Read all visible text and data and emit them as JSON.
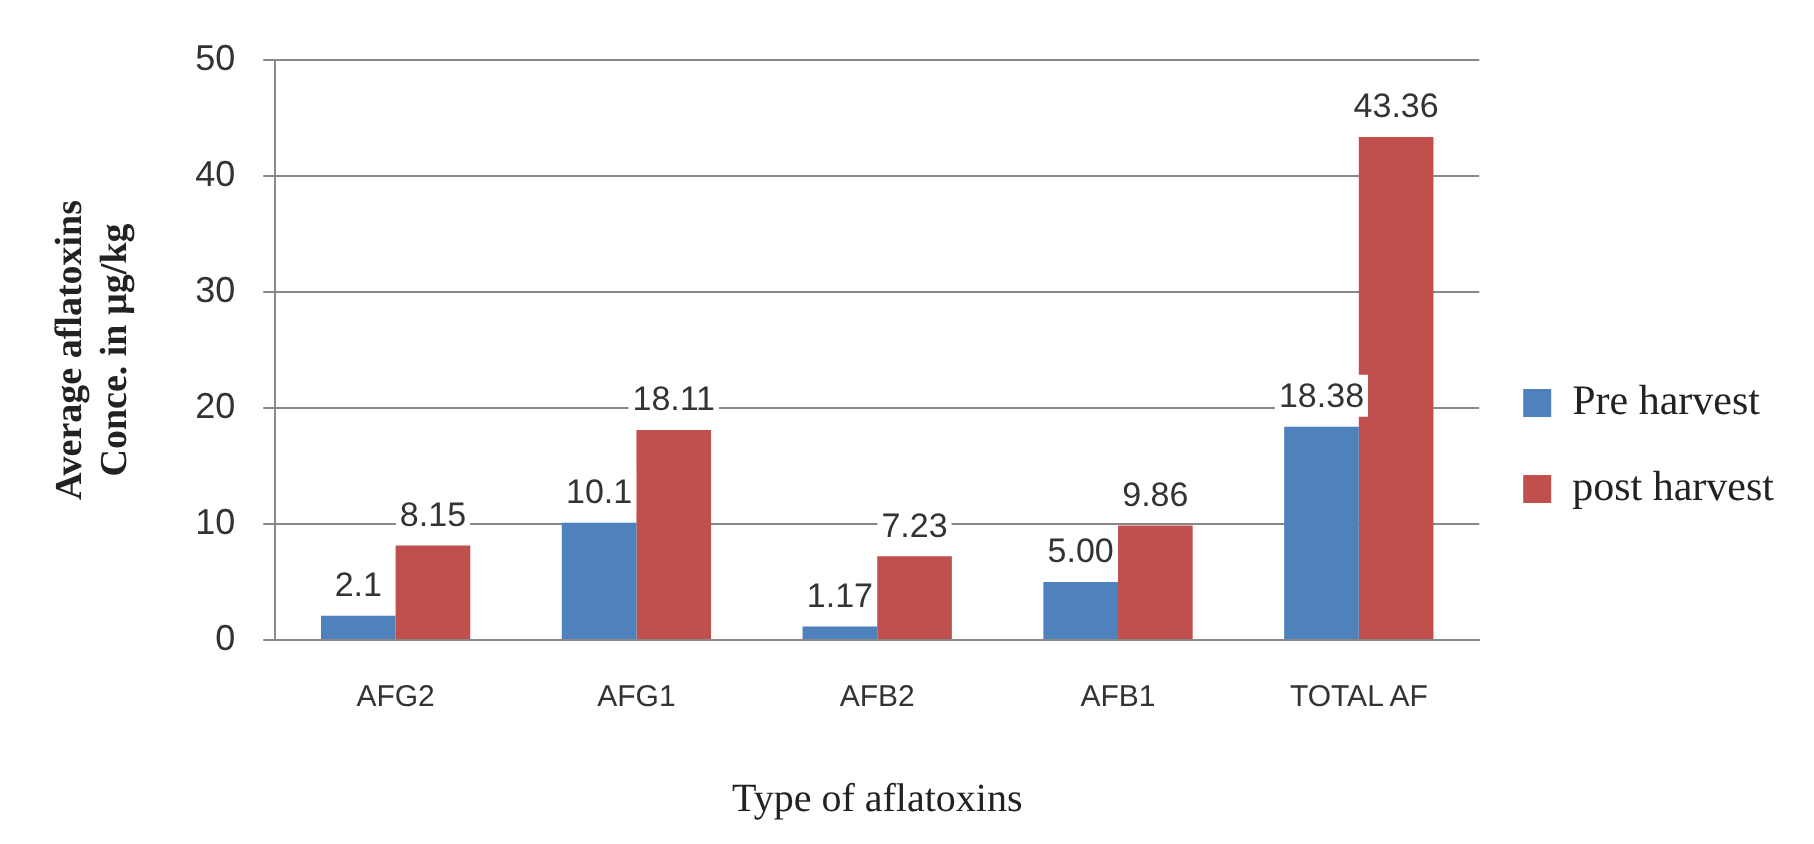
{
  "chart_data": {
    "type": "bar",
    "xlabel": "Type of aflatoxins",
    "ylabel": "Average aflatoxins\nConce. in µg/kg",
    "categories": [
      "AFG2",
      "AFG1",
      "AFB2",
      "AFB1",
      "TOTAL AF"
    ],
    "series": [
      {
        "name": "Pre harvest",
        "color": "#4f81bd",
        "values": [
          2.1,
          10.1,
          1.17,
          5.0,
          18.38
        ],
        "value_labels": [
          "2.1",
          "10.1",
          "1.17",
          "5.00",
          "18.38"
        ]
      },
      {
        "name": "post harvest",
        "color": "#c0504d",
        "values": [
          8.15,
          18.11,
          7.23,
          9.86,
          43.36
        ],
        "value_labels": [
          "8.15",
          "18.11",
          "7.23",
          "9.86",
          "43.36"
        ]
      }
    ],
    "ylim": [
      0,
      50
    ],
    "yticks": [
      0,
      10,
      20,
      30,
      40,
      50
    ],
    "grid": "y",
    "legend": "right"
  }
}
